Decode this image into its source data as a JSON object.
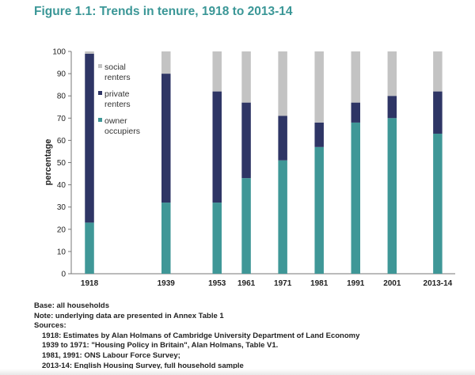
{
  "title": "Figure 1.1: Trends in tenure, 1918 to 2013-14",
  "colors": {
    "title": "#3b9797",
    "owner_occupiers": "#3f9797",
    "private_renters": "#2e3565",
    "social_renters": "#c3c3c3",
    "axis": "#777777"
  },
  "chart_data": {
    "type": "bar",
    "stacked": true,
    "title": "Figure 1.1: Trends in tenure, 1918 to 2013-14",
    "xlabel": "",
    "ylabel": "percentage",
    "ylim": [
      0,
      100
    ],
    "yticks": [
      0,
      10,
      20,
      30,
      40,
      50,
      60,
      70,
      80,
      90,
      100
    ],
    "categories": [
      "1918",
      "1939",
      "1953",
      "1961",
      "1971",
      "1981",
      "1991",
      "2001",
      "2013-14"
    ],
    "x_years": [
      1918,
      1939,
      1953,
      1961,
      1971,
      1981,
      1991,
      2001,
      2013.5
    ],
    "grid": false,
    "legend_position": "top-left, inside plot",
    "series": [
      {
        "name": "owner occupiers",
        "legend_lines": [
          "owner",
          "occupiers"
        ],
        "values": [
          23,
          32,
          32,
          43,
          51,
          57,
          68,
          70,
          63
        ]
      },
      {
        "name": "private renters",
        "legend_lines": [
          "private",
          "renters"
        ],
        "values": [
          76,
          58,
          50,
          34,
          20,
          11,
          9,
          10,
          19
        ]
      },
      {
        "name": "social renters",
        "legend_lines": [
          "social",
          "renters"
        ],
        "values": [
          1,
          10,
          18,
          23,
          29,
          32,
          23,
          20,
          18
        ]
      }
    ]
  },
  "notes": {
    "base": "Base: all households",
    "note": "Note: underlying data are presented in Annex Table 1",
    "sources_label": "Sources:",
    "sources": [
      "1918: Estimates by Alan Holmans of Cambridge University Department of Land Economy",
      "1939 to 1971: \"Housing Policy in Britain\", Alan Holmans, Table V1.",
      "1981, 1991: ONS Labour Force Survey;",
      "2013-14: English Housing Survey, full household sample"
    ]
  }
}
